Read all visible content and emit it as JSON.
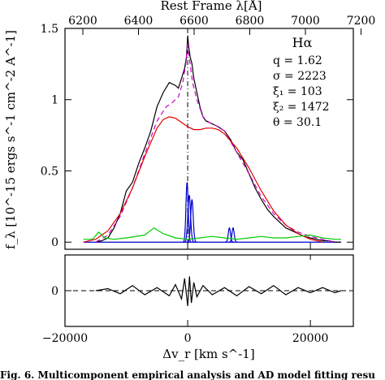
{
  "chart_data": [
    {
      "type": "line",
      "panel": "main",
      "ylabel": "f_λ [10^-15 ergs s^-1 cm^-2 A^-1]",
      "top_xlabel": "Rest Frame λ[Å]",
      "top_ticks": [
        "6200",
        "6400",
        "6600",
        "6800",
        "7000",
        "7200"
      ],
      "xlim": [
        -20000,
        27000
      ],
      "ylim": [
        -0.05,
        1.5
      ],
      "yticks": [
        0,
        0.5,
        1,
        1.5
      ],
      "ytick_labels": [
        "0",
        "0.5",
        "1",
        "1.5"
      ],
      "annotation": {
        "title": "Hα",
        "params": [
          "q = 1.62",
          "σ = 2223",
          "ξ₁ = 103",
          "ξ₂ = 1472",
          "θ = 30.1"
        ]
      },
      "series": [
        {
          "color": "#000000",
          "x": [
            -15000,
            -14000,
            -13000,
            -12000,
            -11000,
            -10000,
            -9000,
            -8000,
            -7000,
            -6000,
            -5000,
            -4000,
            -3000,
            -2000,
            -1500,
            -1000,
            -500,
            -200,
            0,
            150,
            400,
            700,
            1000,
            1500,
            2000,
            2500,
            3000,
            3500,
            4000,
            5000,
            6000,
            7000,
            8000,
            9000,
            10000,
            11000,
            12000,
            13000,
            14000,
            15000,
            16000,
            17000,
            18000,
            19000,
            20000,
            21000,
            22000,
            23000,
            24000,
            25000
          ],
          "y": [
            0.0,
            0.01,
            0.03,
            0.1,
            0.2,
            0.36,
            0.42,
            0.55,
            0.66,
            0.78,
            0.95,
            1.05,
            1.12,
            1.1,
            1.08,
            1.15,
            1.22,
            1.3,
            1.45,
            1.38,
            1.3,
            1.25,
            1.15,
            1.05,
            0.95,
            0.88,
            0.85,
            0.84,
            0.83,
            0.81,
            0.78,
            0.72,
            0.63,
            0.58,
            0.48,
            0.38,
            0.3,
            0.23,
            0.18,
            0.14,
            0.1,
            0.08,
            0.06,
            0.04,
            0.03,
            0.02,
            0.01,
            0.01,
            0.0,
            0.0
          ]
        },
        {
          "color": "#cc00cc",
          "style": "dashed",
          "x": [
            -15000,
            -13000,
            -11000,
            -9000,
            -7000,
            -5000,
            -3500,
            -2500,
            -1500,
            -800,
            -300,
            0,
            300,
            800,
            1500,
            2500,
            3500,
            4500,
            6000,
            8000,
            10000,
            12000,
            14000,
            16000,
            18000,
            20000,
            22000,
            24000
          ],
          "y": [
            0.0,
            0.05,
            0.18,
            0.38,
            0.62,
            0.85,
            0.95,
            0.98,
            1.02,
            1.12,
            1.25,
            1.4,
            1.28,
            1.12,
            1.0,
            0.88,
            0.84,
            0.82,
            0.78,
            0.63,
            0.48,
            0.32,
            0.2,
            0.12,
            0.07,
            0.04,
            0.02,
            0.0
          ]
        },
        {
          "color": "#e00000",
          "x": [
            -17000,
            -15000,
            -13000,
            -11000,
            -9000,
            -7000,
            -5000,
            -4000,
            -3000,
            -2000,
            -1000,
            0,
            1000,
            2000,
            3000,
            4000,
            5000,
            6000,
            8000,
            10000,
            12000,
            14000,
            16000,
            18000,
            20000,
            22000
          ],
          "y": [
            0.0,
            0.02,
            0.08,
            0.2,
            0.38,
            0.6,
            0.8,
            0.86,
            0.88,
            0.87,
            0.84,
            0.81,
            0.79,
            0.79,
            0.8,
            0.8,
            0.79,
            0.76,
            0.66,
            0.52,
            0.36,
            0.22,
            0.12,
            0.06,
            0.02,
            0.0
          ]
        },
        {
          "color": "#00cc00",
          "x": [
            -17000,
            -15500,
            -14500,
            -13500,
            -12000,
            -10000,
            -7000,
            -5500,
            -4000,
            -2000,
            0,
            2000,
            4000,
            6000,
            8000,
            10000,
            12000,
            14000,
            16000,
            18000,
            20000,
            22000,
            24000,
            25000
          ],
          "y": [
            0.02,
            0.02,
            0.07,
            0.03,
            0.02,
            0.03,
            0.05,
            0.1,
            0.06,
            0.03,
            0.02,
            0.03,
            0.04,
            0.03,
            0.02,
            0.03,
            0.04,
            0.03,
            0.03,
            0.04,
            0.05,
            0.03,
            0.02,
            0.02
          ]
        }
      ],
      "narrow_lines": {
        "color": "#0000cc",
        "baseline": 0,
        "peaks": [
          {
            "center": -100,
            "sigma": 180,
            "amp": 0.42
          },
          {
            "center": 250,
            "sigma": 220,
            "amp": 0.33
          },
          {
            "center": 700,
            "sigma": 200,
            "amp": 0.3
          },
          {
            "center": 6800,
            "sigma": 180,
            "amp": 0.1
          },
          {
            "center": 7400,
            "sigma": 180,
            "amp": 0.1
          }
        ]
      },
      "vertical_line_at": 0
    },
    {
      "type": "line",
      "panel": "residual",
      "xlabel": "Δv_r [km s^-1]",
      "xlim": [
        -20000,
        27000
      ],
      "xticks": [
        -20000,
        0,
        20000
      ],
      "xtick_labels": [
        "−20000",
        "0",
        "20000"
      ],
      "ylim": [
        -0.35,
        0.35
      ],
      "yticks": [
        0
      ],
      "ytick_labels": [
        "0"
      ],
      "series": [
        {
          "color": "#000000",
          "x": [
            -15000,
            -13000,
            -11000,
            -9000,
            -7000,
            -5000,
            -3000,
            -2000,
            -1000,
            -500,
            0,
            300,
            600,
            1000,
            1500,
            2500,
            4000,
            6000,
            8000,
            10000,
            12000,
            14000,
            16000,
            18000,
            20000,
            22000,
            24000,
            25000
          ],
          "y": [
            0.0,
            0.02,
            -0.03,
            0.05,
            -0.04,
            0.03,
            -0.05,
            0.06,
            -0.08,
            0.12,
            -0.15,
            0.14,
            -0.12,
            0.08,
            -0.06,
            0.05,
            -0.04,
            0.03,
            -0.05,
            0.04,
            -0.03,
            0.05,
            -0.04,
            0.03,
            -0.02,
            0.03,
            -0.02,
            0.0
          ]
        }
      ]
    }
  ],
  "caption": "Fig. 6. Multicomponent empirical analysis and AD model fitting resu"
}
